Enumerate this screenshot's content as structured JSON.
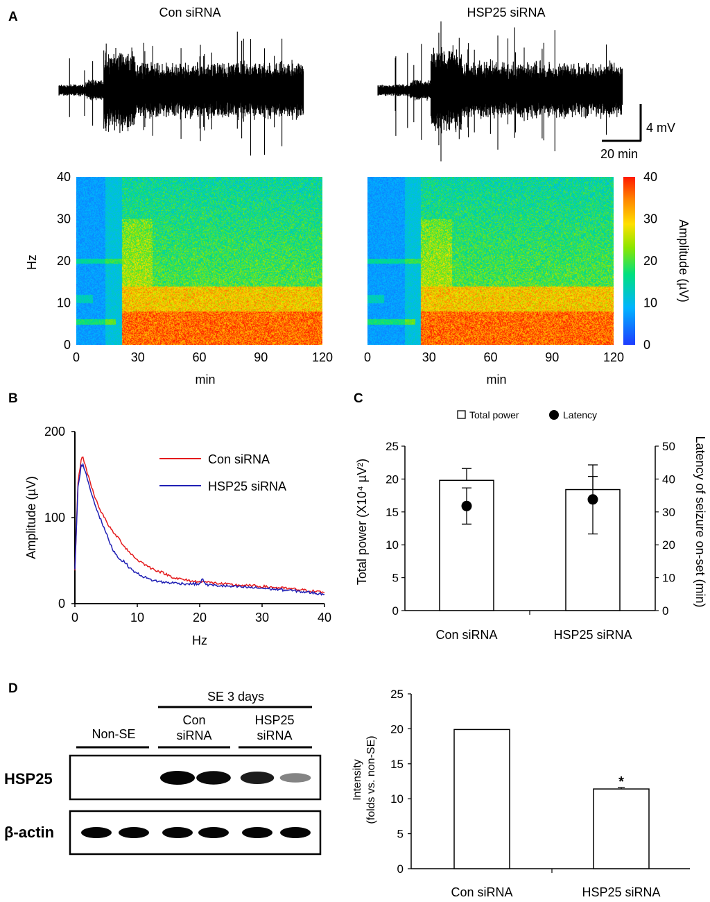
{
  "figure": {
    "panel_labels": [
      "A",
      "B",
      "C",
      "D"
    ]
  },
  "colors": {
    "red_trace": "#e41a1c",
    "blue_trace": "#1f1fb4",
    "spectrogram_low": "#1e50e0",
    "spectrogram_high": "#ff1a00"
  },
  "panel_a": {
    "traces": [
      {
        "title": "Con siRNA",
        "onset_min": 22,
        "end_min": 120
      },
      {
        "title": "HSP25 siRNA",
        "onset_min": 26,
        "end_min": 120
      }
    ],
    "scale_bar": {
      "amplitude_label": "4 mV",
      "time_label": "20 min"
    },
    "spectrogram": {
      "xlabel": "min",
      "ylabel": "Hz",
      "x_ticks": [
        "0",
        "30",
        "60",
        "90",
        "120"
      ],
      "y_ticks": [
        "0",
        "10",
        "20",
        "30",
        "40"
      ],
      "colorbar_label": "Amplitude (µV)",
      "colorbar_ticks": [
        "0",
        "10",
        "20",
        "30",
        "40"
      ],
      "xlim": [
        0,
        120
      ],
      "ylim": [
        0,
        40
      ]
    }
  },
  "chart_data": [
    {
      "panel": "B",
      "type": "line",
      "xlabel": "Hz",
      "ylabel": "Amplitude (µV)",
      "xlim": [
        0,
        40
      ],
      "ylim": [
        0,
        200
      ],
      "x_ticks": [
        "0",
        "10",
        "20",
        "30",
        "40"
      ],
      "y_ticks": [
        "0",
        "100",
        "200"
      ],
      "legend_position": "top-right",
      "series": [
        {
          "name": "Con siRNA",
          "color": "#e41a1c",
          "points": [
            [
              0,
              40
            ],
            [
              0.5,
              140
            ],
            [
              1,
              168
            ],
            [
              1.3,
              170
            ],
            [
              2,
              152
            ],
            [
              3,
              128
            ],
            [
              4,
              110
            ],
            [
              5,
              96
            ],
            [
              6,
              84
            ],
            [
              7,
              76
            ],
            [
              8,
              66
            ],
            [
              9,
              58
            ],
            [
              10,
              51
            ],
            [
              12,
              42
            ],
            [
              14,
              36
            ],
            [
              16,
              30
            ],
            [
              18,
              27
            ],
            [
              20,
              25
            ],
            [
              20.5,
              27
            ],
            [
              21,
              25
            ],
            [
              25,
              22
            ],
            [
              30,
              20
            ],
            [
              35,
              17
            ],
            [
              40,
              13
            ]
          ]
        },
        {
          "name": "HSP25 siRNA",
          "color": "#1f1fb4",
          "points": [
            [
              0,
              40
            ],
            [
              0.5,
              135
            ],
            [
              1,
              160
            ],
            [
              1.3,
              162
            ],
            [
              2,
              145
            ],
            [
              3,
              120
            ],
            [
              4,
              100
            ],
            [
              5,
              82
            ],
            [
              6,
              64
            ],
            [
              7,
              53
            ],
            [
              8,
              48
            ],
            [
              9,
              40
            ],
            [
              10,
              35
            ],
            [
              12,
              28
            ],
            [
              14,
              25
            ],
            [
              16,
              24
            ],
            [
              18,
              23
            ],
            [
              20,
              23
            ],
            [
              20.5,
              29
            ],
            [
              21,
              22
            ],
            [
              25,
              20
            ],
            [
              30,
              18
            ],
            [
              35,
              15
            ],
            [
              40,
              11
            ]
          ]
        }
      ]
    },
    {
      "panel": "C",
      "type": "bar",
      "categories": [
        "Con siRNA",
        "HSP25 siRNA"
      ],
      "legend": [
        "Total power",
        "Latency"
      ],
      "ylabel_left": "Total power (X10⁴ µV²)",
      "ylabel_right": "Latency of seizure on-set (min)",
      "ylim_left": [
        0,
        25
      ],
      "ylim_right": [
        0,
        50
      ],
      "y_ticks_left": [
        "0",
        "5",
        "10",
        "15",
        "20",
        "25"
      ],
      "y_ticks_right": [
        "0",
        "10",
        "20",
        "30",
        "40",
        "50"
      ],
      "series": [
        {
          "name": "Total power",
          "axis": "left",
          "values": [
            19.8,
            18.4
          ],
          "errors": [
            1.8,
            2.0
          ]
        },
        {
          "name": "Latency",
          "axis": "right",
          "values": [
            31.8,
            33.8
          ],
          "errors": [
            5.5,
            10.5
          ]
        }
      ]
    },
    {
      "panel": "D",
      "type": "bar",
      "categories": [
        "Con siRNA",
        "HSP25 siRNA"
      ],
      "ylabel": "Intensity\n(folds vs. non-SE)",
      "ylabel_lines": [
        "Intensity",
        "(folds vs. non-SE)"
      ],
      "ylim": [
        0,
        25
      ],
      "y_ticks": [
        "0",
        "5",
        "10",
        "15",
        "20",
        "25"
      ],
      "values": [
        19.9,
        11.4
      ],
      "errors": [
        0,
        0.2
      ],
      "significance": [
        "",
        "*"
      ]
    }
  ],
  "western_blot": {
    "group_label": "SE 3 days",
    "lane_groups": [
      {
        "label_lines": [
          "Non-SE"
        ]
      },
      {
        "label_lines": [
          "Con",
          "siRNA"
        ]
      },
      {
        "label_lines": [
          "HSP25",
          "siRNA"
        ]
      }
    ],
    "rows": [
      {
        "label": "HSP25",
        "band_intensities": [
          0,
          0,
          1.0,
          0.95,
          0.8,
          0.35
        ]
      },
      {
        "label": "β-actin",
        "band_intensities": [
          1.0,
          1.0,
          1.0,
          1.0,
          1.0,
          1.0
        ]
      }
    ]
  }
}
